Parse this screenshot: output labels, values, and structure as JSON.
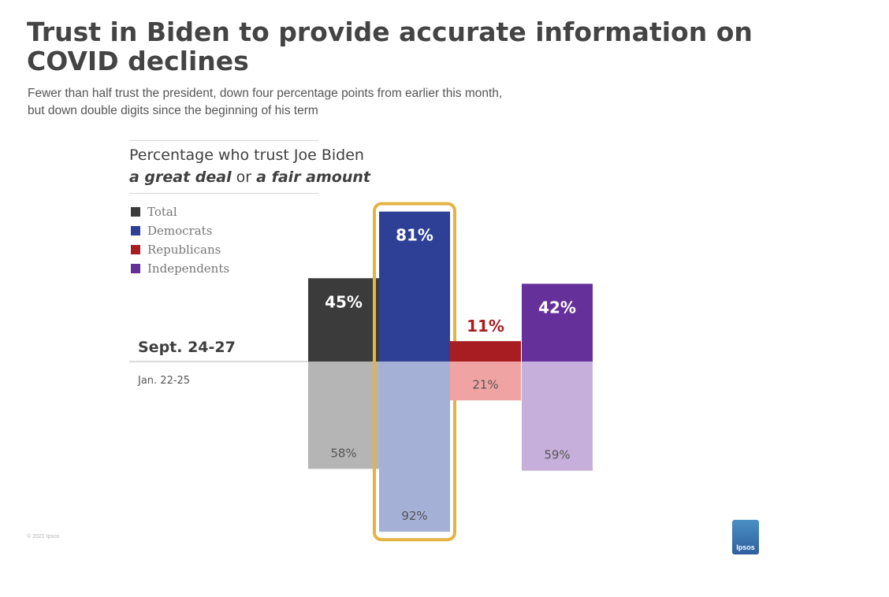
{
  "title": "Trust in Biden to provide accurate information on COVID declines",
  "subtitle_line1": "Fewer than half trust the president, down four percentage points from earlier this month,",
  "subtitle_line2": "but down double digits since the beginning of his term",
  "chart_header": {
    "line1": "Percentage who trust Joe Biden",
    "line2_part1": "a great deal",
    "line2_part2": " or ",
    "line2_part3": "a fair amount"
  },
  "legend": [
    {
      "label": "Total",
      "color": "#3b3b3b"
    },
    {
      "label": "Democrats",
      "color": "#2e3f96"
    },
    {
      "label": "Republicans",
      "color": "#a81d21"
    },
    {
      "label": "Independents",
      "color": "#66309a"
    }
  ],
  "copyright": "© 2021 Ipsos",
  "logo_text": "Ipsos",
  "chart_data": {
    "type": "bar",
    "title": "Percentage who trust Joe Biden a great deal or a fair amount",
    "categories": [
      "Total",
      "Democrats",
      "Republicans",
      "Independents"
    ],
    "series": [
      {
        "name": "Sept. 24-27",
        "values": [
          45,
          81,
          11,
          42
        ],
        "labels": [
          "45%",
          "81%",
          "11%",
          "42%"
        ],
        "colors": [
          "#3b3b3b",
          "#2e3f96",
          "#a81d21",
          "#66309a"
        ]
      },
      {
        "name": "Jan. 22-25",
        "values": [
          58,
          92,
          21,
          59
        ],
        "labels": [
          "58%",
          "92%",
          "21%",
          "59%"
        ],
        "colors": [
          "#b5b5b5",
          "#a5b0d6",
          "#f0a3a3",
          "#c6b0db"
        ]
      }
    ],
    "highlight_category": "Democrats",
    "highlight_color": "#e3b443",
    "ylim": [
      0,
      100
    ]
  }
}
